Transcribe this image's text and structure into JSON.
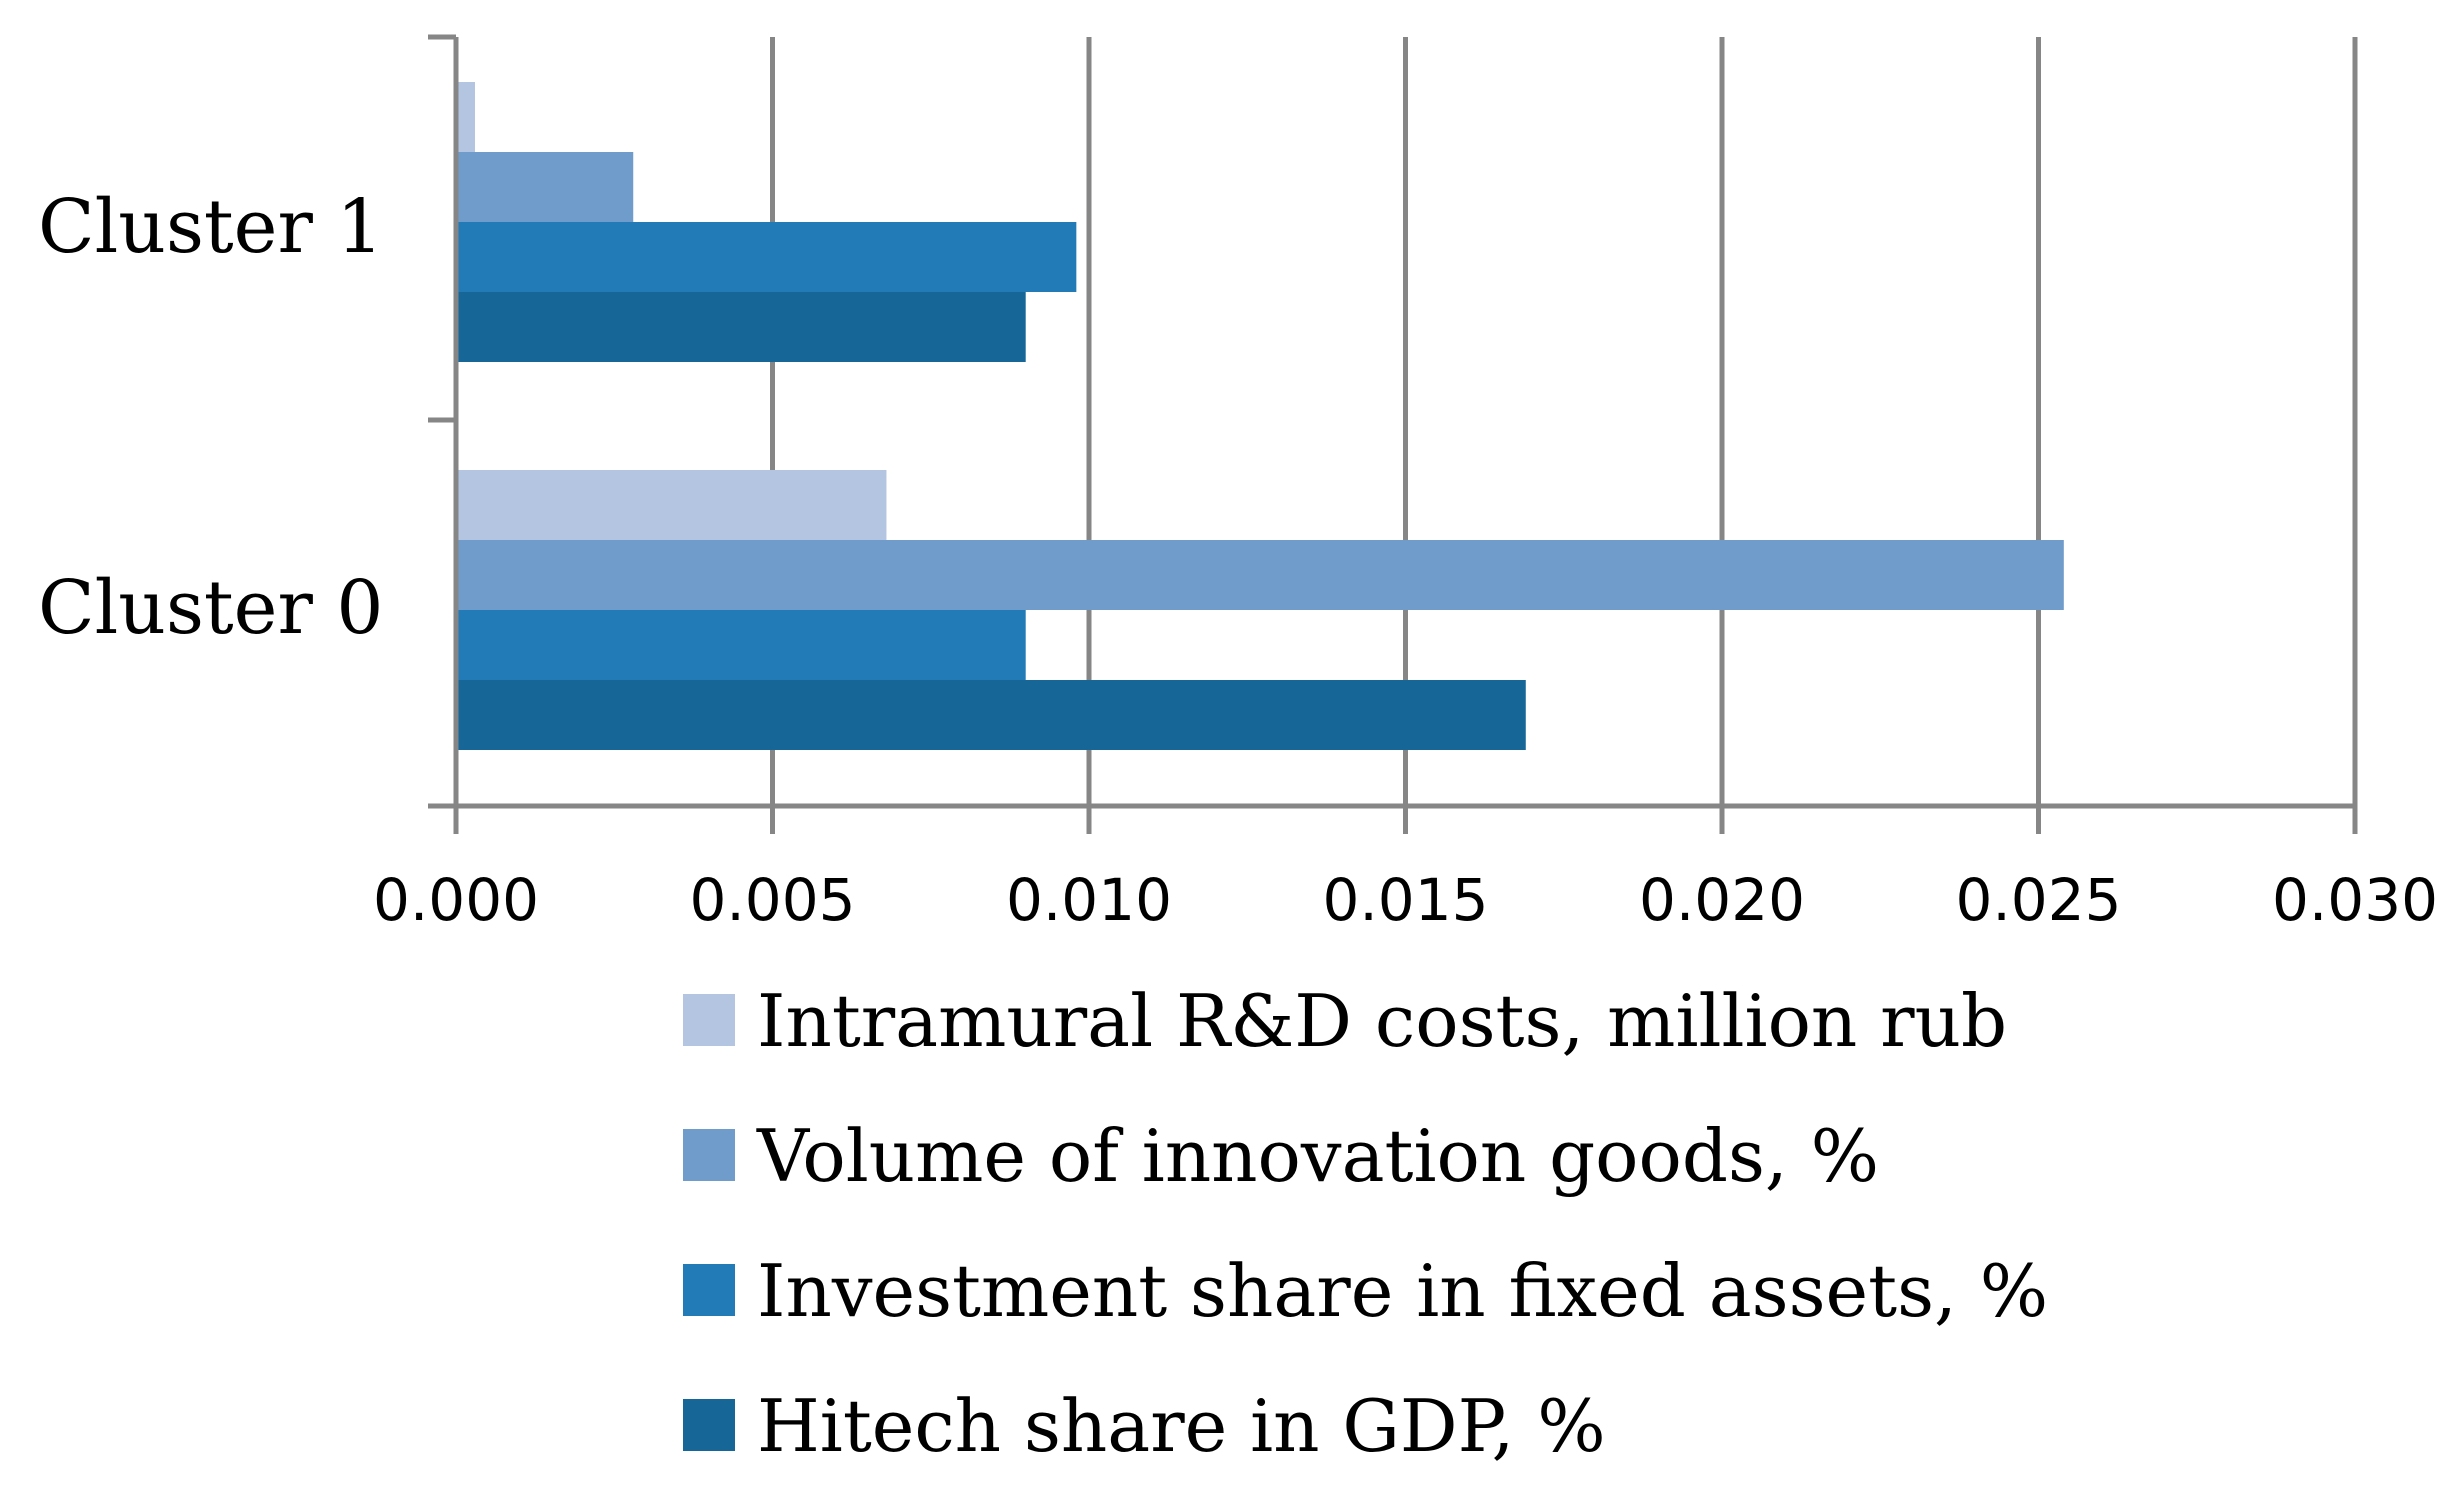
{
  "chart_data": {
    "type": "bar",
    "orientation": "horizontal",
    "title": "",
    "xlabel": "",
    "ylabel": "",
    "xlim": [
      0,
      0.03
    ],
    "grid": true,
    "legend_position": "bottom",
    "categories": [
      "Cluster 1",
      "Cluster 0"
    ],
    "x_ticks": [
      "0.000",
      "0.005",
      "0.010",
      "0.015",
      "0.020",
      "0.025",
      "0.030"
    ],
    "series": [
      {
        "name": "Intramural R&D costs, million rub",
        "color": "#b3c5e0",
        "values": [
          0.0003,
          0.0068
        ]
      },
      {
        "name": "Volume of innovation goods, %",
        "color": "#709ccb",
        "values": [
          0.0028,
          0.0254
        ]
      },
      {
        "name": "Investment share in fixed assets, %",
        "color": "#227ab6",
        "values": [
          0.0098,
          0.009
        ]
      },
      {
        "name": "Hitech share in GDP, %",
        "color": "#176698",
        "values": [
          0.009,
          0.0169
        ]
      }
    ]
  }
}
